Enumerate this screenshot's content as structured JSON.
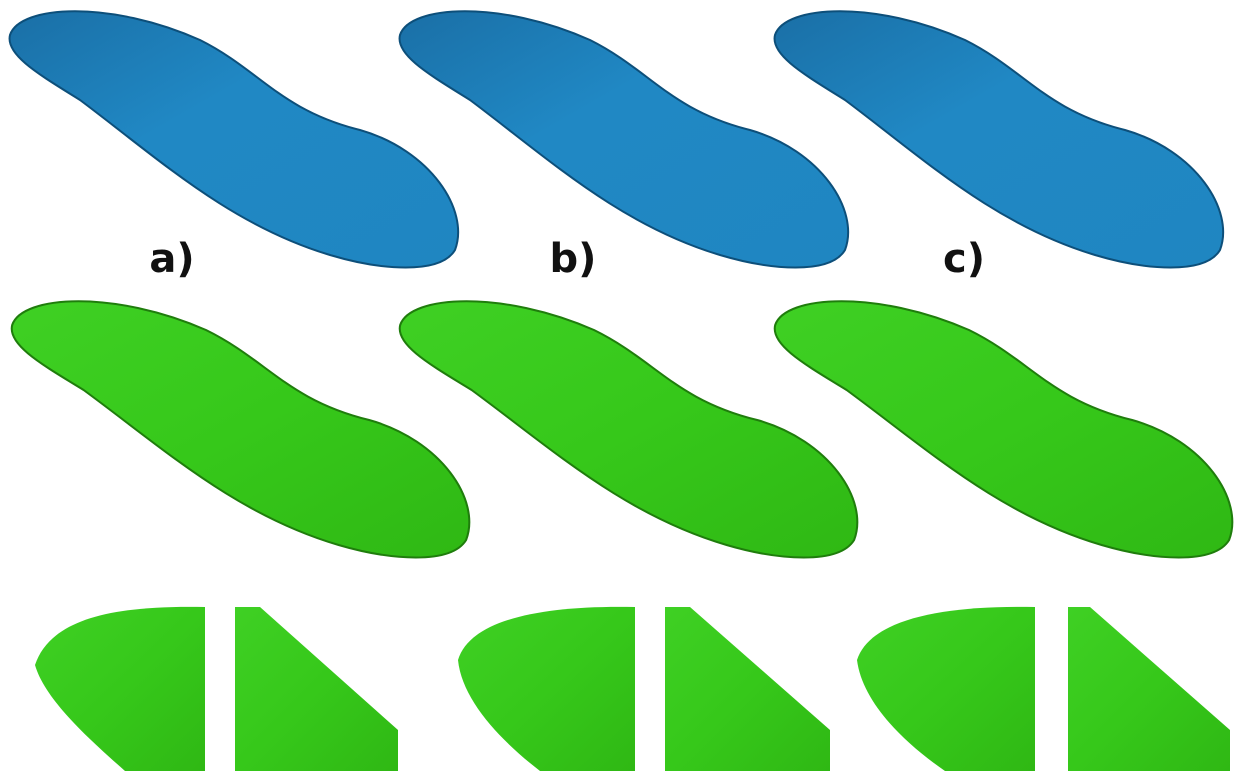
{
  "labels": [
    "a)",
    "b)",
    "c)"
  ]
}
